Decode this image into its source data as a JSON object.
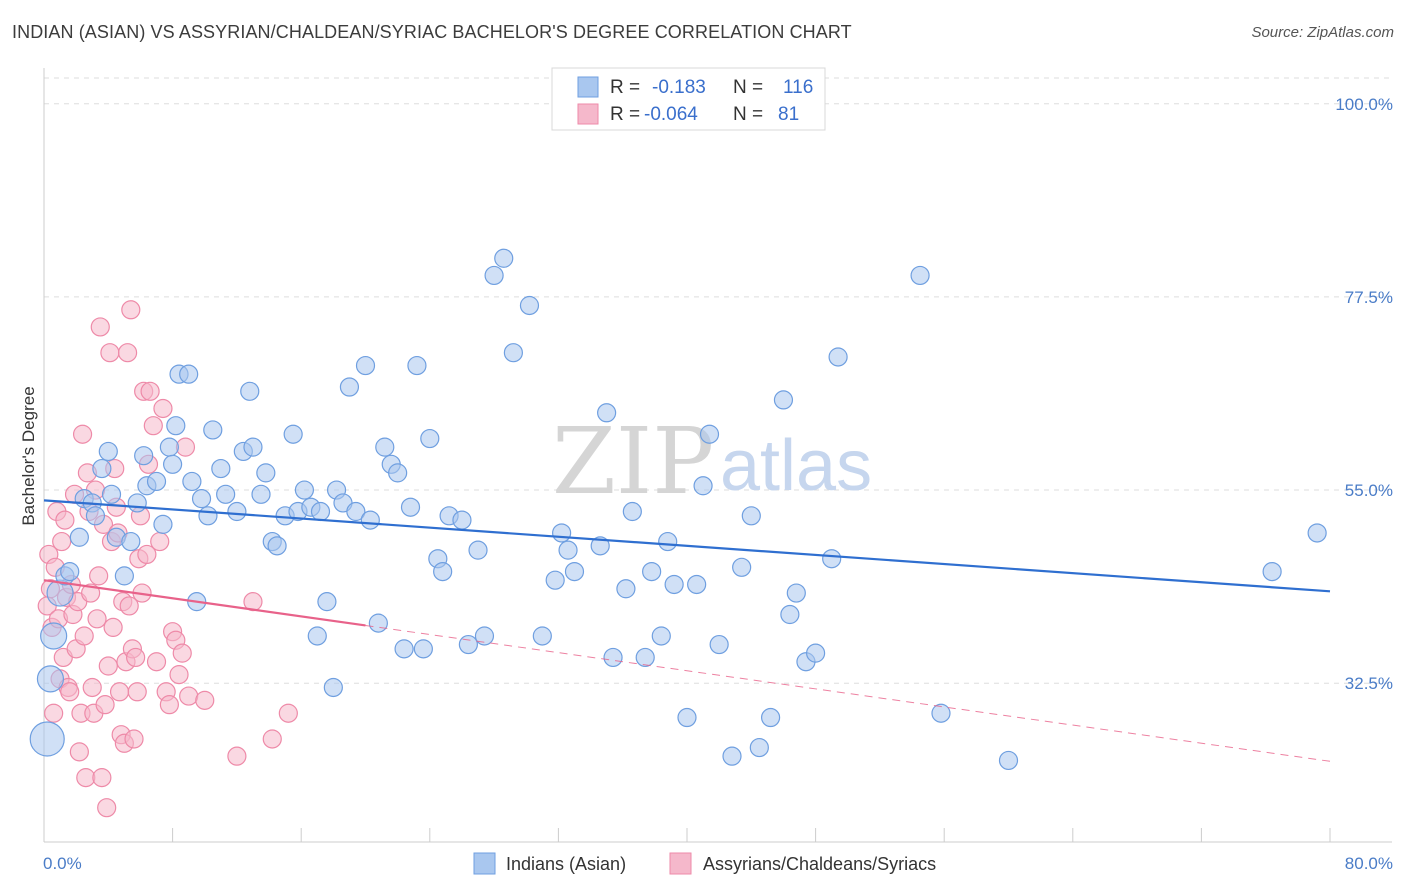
{
  "title": "INDIAN (ASIAN) VS ASSYRIAN/CHALDEAN/SYRIAC BACHELOR'S DEGREE CORRELATION CHART",
  "source": "Source: ZipAtlas.com",
  "watermark": {
    "zip": "ZIP",
    "atlas": "atlas"
  },
  "colors": {
    "blue_fill": "#a9c7ef",
    "blue_stroke": "#6f9fe0",
    "blue_line": "#2f6fd0",
    "pink_fill": "#f5b8cb",
    "pink_stroke": "#ee8aa8",
    "pink_line": "#e8628a",
    "grid": "#dddddd",
    "label": "#4a7cc7"
  },
  "legend": {
    "rows": [
      {
        "r_label": "R =",
        "r_value": "-0.183",
        "n_label": "N =",
        "n_value": "116",
        "series": "blue"
      },
      {
        "r_label": "R =",
        "r_value": "-0.064",
        "n_label": "N =",
        "n_value": "81",
        "series": "pink"
      }
    ]
  },
  "chart_data": {
    "type": "scatter",
    "title": "INDIAN (ASIAN) VS ASSYRIAN/CHALDEAN/SYRIAC BACHELOR'S DEGREE CORRELATION CHART",
    "xlabel": "",
    "ylabel": "Bachelor's Degree",
    "xlim": [
      0,
      80
    ],
    "ylim": [
      14,
      103
    ],
    "x_tick_labels": [
      "0.0%",
      "80.0%"
    ],
    "y_tick_values": [
      32.5,
      55.0,
      77.5,
      100.0
    ],
    "y_tick_labels": [
      "32.5%",
      "55.0%",
      "77.5%",
      "100.0%"
    ],
    "series": [
      {
        "name": "Indians (Asian)",
        "color": "#a9c7ef",
        "trend": {
          "x0": 0,
          "y0": 53.8,
          "x1": 80,
          "y1": 43.2,
          "solid_to": 80
        },
        "points": [
          [
            0.2,
            26
          ],
          [
            0.4,
            33
          ],
          [
            0.6,
            38
          ],
          [
            1.0,
            43
          ],
          [
            1.3,
            45
          ],
          [
            1.6,
            45.5
          ],
          [
            2.2,
            49.5
          ],
          [
            2.5,
            54
          ],
          [
            3.0,
            53.5
          ],
          [
            3.2,
            52
          ],
          [
            3.6,
            57.5
          ],
          [
            4.0,
            59.5
          ],
          [
            4.2,
            54.5
          ],
          [
            4.5,
            49.5
          ],
          [
            5.0,
            45
          ],
          [
            5.4,
            49
          ],
          [
            5.8,
            53.5
          ],
          [
            6.2,
            59
          ],
          [
            6.4,
            55.5
          ],
          [
            7.0,
            56
          ],
          [
            7.4,
            51
          ],
          [
            7.8,
            60
          ],
          [
            8.0,
            58
          ],
          [
            8.2,
            62.5
          ],
          [
            8.4,
            68.5
          ],
          [
            9.0,
            68.5
          ],
          [
            9.2,
            56
          ],
          [
            9.5,
            42
          ],
          [
            9.8,
            54
          ],
          [
            10.2,
            52
          ],
          [
            10.5,
            62
          ],
          [
            11.0,
            57.5
          ],
          [
            11.3,
            54.5
          ],
          [
            12.0,
            52.5
          ],
          [
            12.4,
            59.5
          ],
          [
            12.8,
            66.5
          ],
          [
            13.0,
            60
          ],
          [
            13.5,
            54.5
          ],
          [
            13.8,
            57
          ],
          [
            14.2,
            49
          ],
          [
            14.5,
            48.5
          ],
          [
            15.0,
            52
          ],
          [
            15.5,
            61.5
          ],
          [
            15.8,
            52.5
          ],
          [
            16.2,
            55
          ],
          [
            16.6,
            53
          ],
          [
            17.0,
            38
          ],
          [
            17.2,
            52.5
          ],
          [
            17.6,
            42
          ],
          [
            18.0,
            32
          ],
          [
            18.2,
            55
          ],
          [
            18.6,
            53.5
          ],
          [
            19.0,
            67
          ],
          [
            19.4,
            52.5
          ],
          [
            20.0,
            69.5
          ],
          [
            20.3,
            51.5
          ],
          [
            20.8,
            39.5
          ],
          [
            21.2,
            60
          ],
          [
            21.6,
            58
          ],
          [
            22.0,
            57
          ],
          [
            22.4,
            36.5
          ],
          [
            22.8,
            53
          ],
          [
            23.2,
            69.5
          ],
          [
            23.6,
            36.5
          ],
          [
            24.0,
            61
          ],
          [
            24.5,
            47
          ],
          [
            24.8,
            45.5
          ],
          [
            25.2,
            52
          ],
          [
            26.0,
            51.5
          ],
          [
            26.4,
            37
          ],
          [
            27.0,
            48
          ],
          [
            27.4,
            38
          ],
          [
            28.0,
            80
          ],
          [
            28.6,
            82
          ],
          [
            29.2,
            71
          ],
          [
            30.2,
            76.5
          ],
          [
            31.0,
            38
          ],
          [
            31.8,
            44.5
          ],
          [
            32.2,
            50
          ],
          [
            32.6,
            48
          ],
          [
            33.0,
            45.5
          ],
          [
            34.6,
            48.5
          ],
          [
            35.0,
            64
          ],
          [
            35.4,
            35.5
          ],
          [
            36.2,
            43.5
          ],
          [
            36.6,
            52.5
          ],
          [
            37.4,
            35.5
          ],
          [
            37.8,
            45.5
          ],
          [
            38.4,
            38
          ],
          [
            38.8,
            49
          ],
          [
            39.2,
            44
          ],
          [
            40.0,
            28.5
          ],
          [
            40.6,
            44
          ],
          [
            41.0,
            55.5
          ],
          [
            41.4,
            61.5
          ],
          [
            42.0,
            37
          ],
          [
            42.8,
            24
          ],
          [
            43.4,
            46
          ],
          [
            44.0,
            52
          ],
          [
            44.5,
            25
          ],
          [
            45.2,
            28.5
          ],
          [
            46.0,
            65.5
          ],
          [
            46.4,
            40.5
          ],
          [
            46.8,
            43
          ],
          [
            47.4,
            35
          ],
          [
            48.0,
            36
          ],
          [
            49.0,
            47
          ],
          [
            49.4,
            70.5
          ],
          [
            54.5,
            80
          ],
          [
            55.8,
            29
          ],
          [
            60.0,
            23.5
          ],
          [
            76.4,
            45.5
          ],
          [
            79.2,
            50
          ]
        ]
      },
      {
        "name": "Assyrians/Chaldeans/Syriacs",
        "color": "#f5b8cb",
        "trend": {
          "x0": 0,
          "y0": 44.5,
          "x1": 80,
          "y1": 23.4,
          "solid_to": 20
        },
        "points": [
          [
            0.2,
            41.5
          ],
          [
            0.3,
            47.5
          ],
          [
            0.4,
            43.5
          ],
          [
            0.5,
            39
          ],
          [
            0.6,
            29
          ],
          [
            0.7,
            46
          ],
          [
            0.8,
            52.5
          ],
          [
            0.9,
            40
          ],
          [
            1.0,
            33
          ],
          [
            1.1,
            49
          ],
          [
            1.2,
            35.5
          ],
          [
            1.3,
            51.5
          ],
          [
            1.4,
            42.5
          ],
          [
            1.5,
            32
          ],
          [
            1.6,
            31.5
          ],
          [
            1.7,
            44
          ],
          [
            1.8,
            40.5
          ],
          [
            1.9,
            54.5
          ],
          [
            2.0,
            36.5
          ],
          [
            2.1,
            42
          ],
          [
            2.2,
            24.5
          ],
          [
            2.3,
            29
          ],
          [
            2.4,
            61.5
          ],
          [
            2.5,
            38
          ],
          [
            2.6,
            21.5
          ],
          [
            2.7,
            57
          ],
          [
            2.8,
            52.5
          ],
          [
            2.9,
            43
          ],
          [
            3.0,
            32
          ],
          [
            3.1,
            29
          ],
          [
            3.2,
            55
          ],
          [
            3.3,
            40
          ],
          [
            3.4,
            45
          ],
          [
            3.5,
            74
          ],
          [
            3.6,
            21.5
          ],
          [
            3.7,
            51
          ],
          [
            3.8,
            30
          ],
          [
            3.9,
            18
          ],
          [
            4.0,
            34.5
          ],
          [
            4.1,
            71
          ],
          [
            4.2,
            49
          ],
          [
            4.3,
            39
          ],
          [
            4.4,
            57.5
          ],
          [
            4.5,
            53
          ],
          [
            4.6,
            50
          ],
          [
            4.7,
            31.5
          ],
          [
            4.8,
            26.5
          ],
          [
            4.9,
            42
          ],
          [
            5.0,
            25.5
          ],
          [
            5.1,
            35
          ],
          [
            5.2,
            71
          ],
          [
            5.3,
            41.5
          ],
          [
            5.4,
            76
          ],
          [
            5.5,
            36.5
          ],
          [
            5.6,
            26
          ],
          [
            5.7,
            35.5
          ],
          [
            5.8,
            31.5
          ],
          [
            5.9,
            47
          ],
          [
            6.0,
            52
          ],
          [
            6.1,
            43
          ],
          [
            6.2,
            66.5
          ],
          [
            6.4,
            47.5
          ],
          [
            6.5,
            58
          ],
          [
            6.6,
            66.5
          ],
          [
            6.8,
            62.5
          ],
          [
            7.0,
            35
          ],
          [
            7.2,
            49
          ],
          [
            7.4,
            64.5
          ],
          [
            7.6,
            31.5
          ],
          [
            7.8,
            30
          ],
          [
            8.0,
            38.5
          ],
          [
            8.2,
            37.5
          ],
          [
            8.4,
            33.5
          ],
          [
            8.6,
            36
          ],
          [
            8.8,
            60
          ],
          [
            9.0,
            31
          ],
          [
            10.0,
            30.5
          ],
          [
            12.0,
            24
          ],
          [
            13.0,
            42
          ],
          [
            14.2,
            26
          ],
          [
            15.2,
            29
          ]
        ]
      }
    ]
  },
  "bottom_legend": [
    {
      "label": "Indians (Asian)",
      "series": "blue"
    },
    {
      "label": "Assyrians/Chaldeans/Syriacs",
      "series": "pink"
    }
  ]
}
